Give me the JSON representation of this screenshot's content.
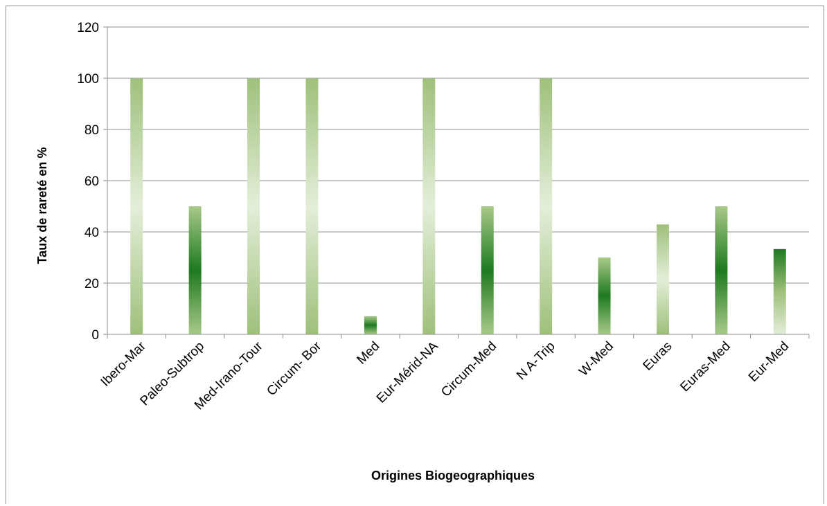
{
  "chart_data": {
    "type": "bar",
    "title": "",
    "xlabel": "Origines Biogeographiques",
    "ylabel": "Taux de rareté en %",
    "ylim": [
      0,
      120
    ],
    "yticks": [
      0,
      20,
      40,
      60,
      80,
      100,
      120
    ],
    "grid": true,
    "legend": "none",
    "categories": [
      "Ibero-Mar",
      "Paleo-Subtrop",
      "Med-Irano-Tour",
      "Circum- Bor",
      "Med",
      "Eur-Mérid-NA",
      "Circum-Med",
      "N A-Trip",
      "W-Med",
      "Euras",
      "Euras-Med",
      "Eur-Med"
    ],
    "values": [
      100,
      50,
      100,
      100,
      7.1,
      100,
      50,
      100,
      30,
      42.9,
      50,
      33.3
    ],
    "gradient_styles": [
      "light",
      "dark",
      "light",
      "light",
      "dark",
      "light",
      "dark",
      "light",
      "dark",
      "light",
      "dark",
      "dark-top"
    ],
    "colors": {
      "light_mid": "#e3eed9",
      "light_edge": "#9fc07a",
      "dark_mid": "#1e7a1e",
      "dark_edge": "#a8c98a",
      "grid": "#8c8c8c"
    }
  }
}
